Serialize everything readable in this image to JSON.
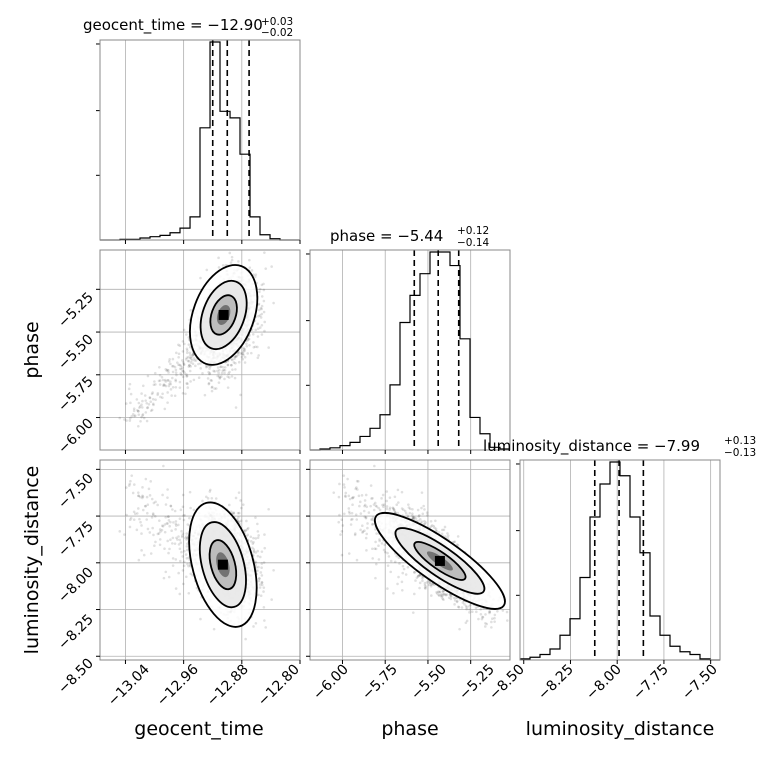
{
  "chart_data": {
    "type": "corner",
    "parameters": [
      "geocent_time",
      "phase",
      "luminosity_distance"
    ],
    "titles": [
      {
        "param": "geocent_time",
        "text": "geocent_time = −12.90",
        "plus": "+0.03",
        "minus": "−0.02"
      },
      {
        "param": "phase",
        "text": "phase = −5.44",
        "plus": "+0.12",
        "minus": "−0.14"
      },
      {
        "param": "luminosity_distance",
        "text": "luminosity_distance = −7.99",
        "plus": "+0.13",
        "minus": "−0.13"
      }
    ],
    "ranges": {
      "geocent_time": [
        -13.075,
        -12.8
      ],
      "phase": [
        -6.19,
        -5.02
      ],
      "luminosity_distance": [
        -8.52,
        -7.45
      ]
    },
    "ticks": {
      "geocent_time": [
        "−13.04",
        "−12.96",
        "−12.88",
        "−12.80"
      ],
      "phase": [
        "−6.00",
        "−5.75",
        "−5.50",
        "−5.25"
      ],
      "luminosity_distance": [
        "−8.50",
        "−8.25",
        "−8.00",
        "−7.75",
        "−7.50"
      ]
    },
    "quantiles": {
      "geocent_time": [
        -12.92,
        -12.9,
        -12.87
      ],
      "phase": [
        -5.58,
        -5.44,
        -5.32
      ],
      "luminosity_distance": [
        -8.12,
        -7.99,
        -7.86
      ]
    },
    "histograms": {
      "geocent_time": {
        "edges": [
          -13.075,
          -13.0612,
          -13.0475,
          -13.0337,
          -13.02,
          -13.0062,
          -12.9925,
          -12.9787,
          -12.965,
          -12.9512,
          -12.9375,
          -12.9237,
          -12.91,
          -12.8962,
          -12.8825,
          -12.8687,
          -12.855,
          -12.8412,
          -12.8275,
          -12.8137,
          -12.8
        ],
        "counts": [
          0,
          0,
          1,
          1,
          3,
          5,
          7,
          11,
          18,
          35,
          170,
          300,
          195,
          185,
          130,
          35,
          8,
          2,
          0,
          0
        ]
      },
      "phase": {
        "edges": [
          -6.19,
          -6.1315,
          -6.073,
          -6.0145,
          -5.956,
          -5.8975,
          -5.839,
          -5.7805,
          -5.722,
          -5.6635,
          -5.605,
          -5.5465,
          -5.488,
          -5.4295,
          -5.371,
          -5.3125,
          -5.254,
          -5.1955,
          -5.137,
          -5.0785,
          -5.02
        ],
        "counts": [
          0,
          2,
          4,
          8,
          14,
          25,
          40,
          65,
          120,
          235,
          285,
          325,
          365,
          365,
          340,
          205,
          60,
          30,
          5,
          2
        ]
      },
      "luminosity_distance": {
        "edges": [
          -8.52,
          -8.4665,
          -8.413,
          -8.3595,
          -8.306,
          -8.2525,
          -8.199,
          -8.1455,
          -8.092,
          -8.0385,
          -7.985,
          -7.9315,
          -7.878,
          -7.8245,
          -7.771,
          -7.7175,
          -7.664,
          -7.6105,
          -7.557,
          -7.5035,
          -7.45
        ],
        "counts": [
          2,
          5,
          10,
          20,
          45,
          75,
          150,
          260,
          320,
          360,
          335,
          260,
          195,
          80,
          45,
          25,
          15,
          10,
          2,
          0
        ]
      }
    },
    "contour_color": "#000000",
    "grid": true
  }
}
